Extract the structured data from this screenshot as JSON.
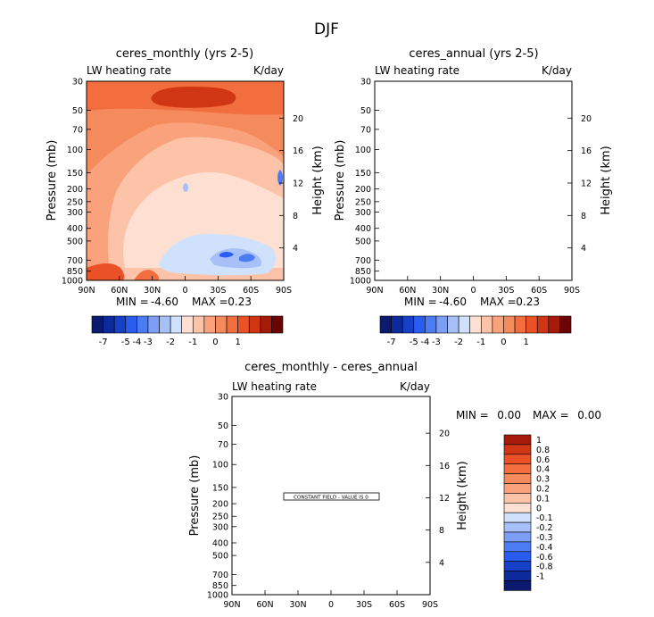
{
  "page_title": "DJF",
  "colors": {
    "negative_scale": [
      "#0b1a6e",
      "#0d2a9c",
      "#1640c8",
      "#2a5cf0",
      "#4c7cf2",
      "#7c9ef4",
      "#a7c0f7",
      "#d0e2fb"
    ],
    "positive_scale": [
      "#fde0d2",
      "#fcc3a8",
      "#f9a27c",
      "#f58a5c",
      "#f26e3f",
      "#ea5127",
      "#d03614",
      "#a51a08",
      "#6b0404"
    ]
  },
  "chart_data": [
    {
      "type": "heatmap",
      "title": "ceres_monthly (yrs 2-5)",
      "variable_label": "LW heating rate",
      "units_label": "K/day",
      "ylabel": "Pressure (mb)",
      "y2label": "Height (km)",
      "x_ticks": [
        "90N",
        "60N",
        "30N",
        "0",
        "30S",
        "60S",
        "90S"
      ],
      "y_ticks": [
        "30",
        "50",
        "70",
        "100",
        "150",
        "200",
        "250",
        "300",
        "400",
        "500",
        "700",
        "850",
        "1000"
      ],
      "y2_ticks": [
        "20",
        "16",
        "12",
        "8",
        "4"
      ],
      "stats": {
        "min_label": "MIN =",
        "min_value": "-4.60",
        "max_label": "MAX =",
        "max_value": "0.23"
      },
      "colorbar_labels": [
        "-7",
        "-5",
        "-4",
        "-3",
        "-2",
        "-1",
        "0",
        "1"
      ]
    },
    {
      "type": "heatmap",
      "title": "ceres_annual (yrs 2-5)",
      "variable_label": "LW heating rate",
      "units_label": "K/day",
      "ylabel": "Pressure (mb)",
      "y2label": "Height (km)",
      "x_ticks": [
        "90N",
        "60N",
        "30N",
        "0",
        "30S",
        "60S",
        "90S"
      ],
      "y_ticks": [
        "30",
        "50",
        "70",
        "100",
        "150",
        "200",
        "250",
        "300",
        "400",
        "500",
        "700",
        "850",
        "1000"
      ],
      "y2_ticks": [
        "20",
        "16",
        "12",
        "8",
        "4"
      ],
      "stats": {
        "min_label": "MIN =",
        "min_value": "-4.60",
        "max_label": "MAX =",
        "max_value": "0.23"
      },
      "colorbar_labels": [
        "-7",
        "-5",
        "-4",
        "-3",
        "-2",
        "-1",
        "0",
        "1"
      ]
    },
    {
      "type": "heatmap",
      "title": "ceres_monthly - ceres_annual",
      "variable_label": "LW heating rate",
      "units_label": "K/day",
      "ylabel": "Pressure (mb)",
      "y2label": "Height (km)",
      "x_ticks": [
        "90N",
        "60N",
        "30N",
        "0",
        "30S",
        "60S",
        "90S"
      ],
      "y_ticks": [
        "30",
        "50",
        "70",
        "100",
        "150",
        "200",
        "250",
        "300",
        "400",
        "500",
        "700",
        "850",
        "1000"
      ],
      "y2_ticks": [
        "20",
        "16",
        "12",
        "8",
        "4"
      ],
      "stats": {
        "min_label": "MIN =",
        "min_value": "0.00",
        "max_label": "MAX =",
        "max_value": "0.00"
      },
      "constant_field_note": "CONSTANT FIELD - VALUE IS 0",
      "colorbar_labels": [
        "1",
        "0.8",
        "0.6",
        "0.4",
        "0.3",
        "0.2",
        "0.1",
        "0",
        "-0.1",
        "-0.2",
        "-0.3",
        "-0.4",
        "-0.6",
        "-0.8",
        "-1"
      ]
    }
  ]
}
